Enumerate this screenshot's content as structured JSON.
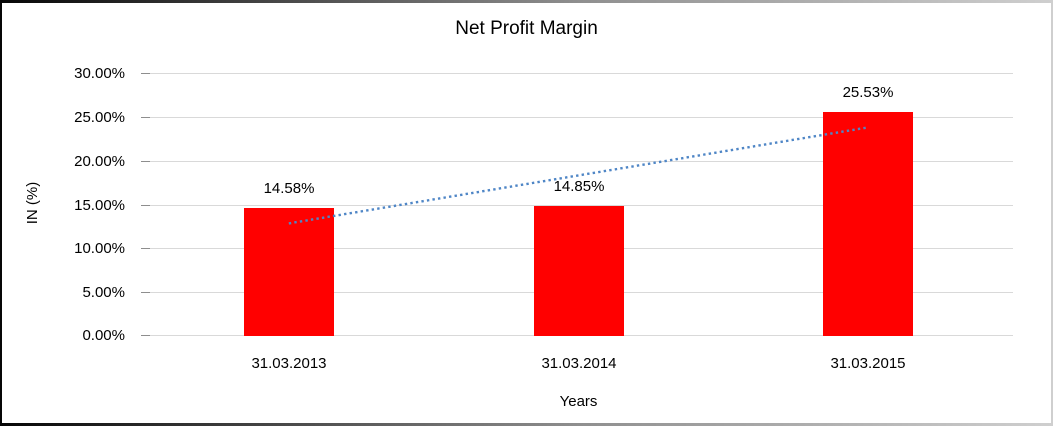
{
  "frame": {
    "border_gradient_left": "#060606",
    "border_gradient_right": "#cfcfcf"
  },
  "chart_data": {
    "type": "bar",
    "title": "Net Profit Margin",
    "xlabel": "Years",
    "ylabel": "IN (%)",
    "categories": [
      "31.03.2013",
      "31.03.2014",
      "31.03.2015"
    ],
    "values": [
      14.58,
      14.85,
      25.53
    ],
    "data_labels": [
      "14.58%",
      "14.85%",
      "25.53%"
    ],
    "ylim": [
      0,
      30
    ],
    "ytick_step": 5,
    "ytick_labels": [
      "0.00%",
      "5.00%",
      "10.00%",
      "15.00%",
      "20.00%",
      "25.00%",
      "30.00%"
    ],
    "grid": true,
    "legend": "none",
    "bar_color": "#FF0000",
    "gridline_color": "#D9D9D9",
    "tick_color": "#8E8E8E",
    "text_color": "#000000",
    "trendline": {
      "type": "linear",
      "style": "dotted",
      "color": "#4F86C6",
      "start_value": 12.84,
      "end_value": 23.79
    }
  }
}
